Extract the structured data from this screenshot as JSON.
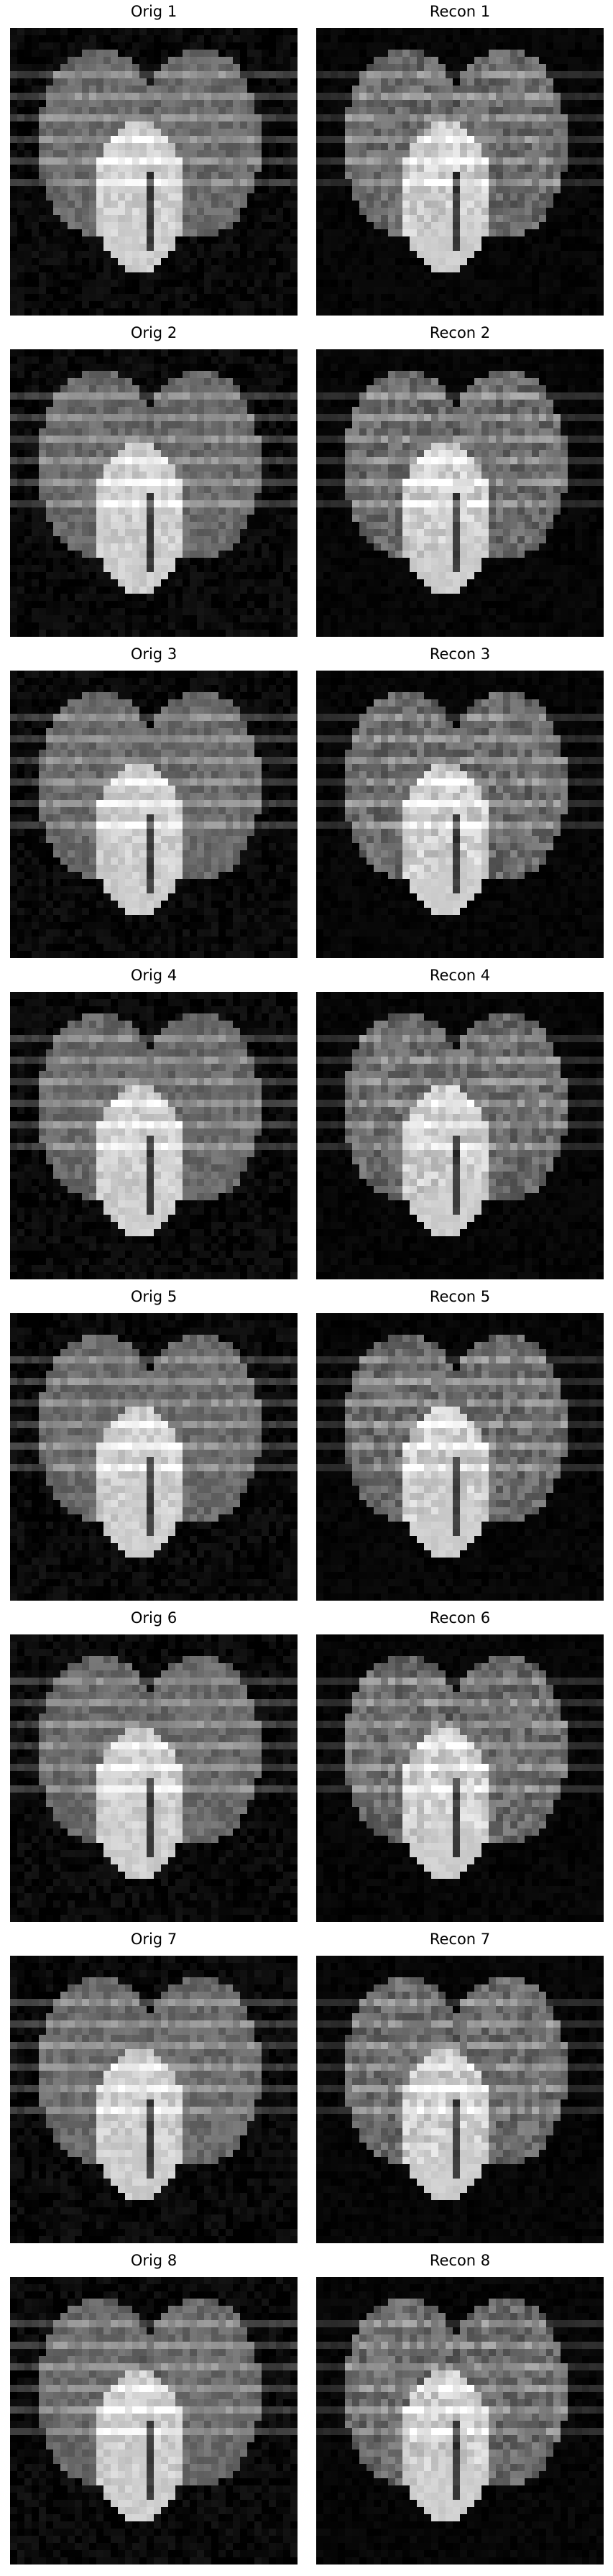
{
  "panels": [
    {
      "row": 1,
      "orig_title": "Orig 1",
      "recon_title": "Recon 1"
    },
    {
      "row": 2,
      "orig_title": "Orig 2",
      "recon_title": "Recon 2"
    },
    {
      "row": 3,
      "orig_title": "Orig 3",
      "recon_title": "Recon 3"
    },
    {
      "row": 4,
      "orig_title": "Orig 4",
      "recon_title": "Recon 4"
    },
    {
      "row": 5,
      "orig_title": "Orig 5",
      "recon_title": "Recon 5"
    },
    {
      "row": 6,
      "orig_title": "Orig 6",
      "recon_title": "Recon 6"
    },
    {
      "row": 7,
      "orig_title": "Orig 7",
      "recon_title": "Recon 7"
    },
    {
      "row": 8,
      "orig_title": "Orig 8",
      "recon_title": "Recon 8"
    }
  ],
  "colors": {
    "background": "#ffffff",
    "image_background": "#000000",
    "title_text": "#000000"
  }
}
